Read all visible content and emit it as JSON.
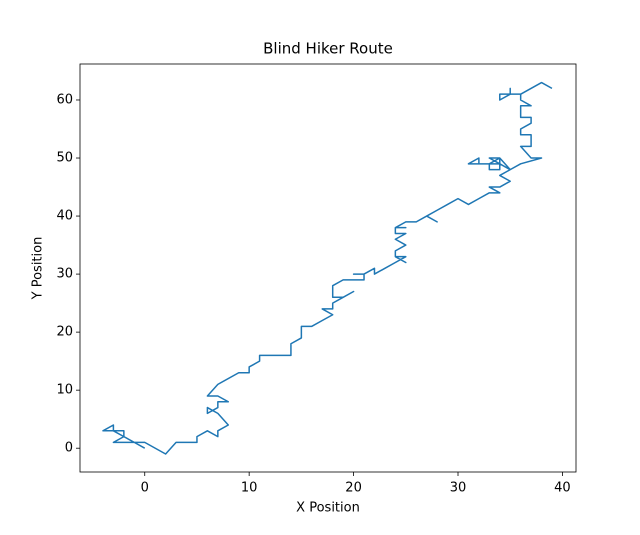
{
  "chart_data": {
    "type": "line",
    "title": "Blind Hiker Route",
    "x_label": "X Position",
    "y_label": "Y Position",
    "x": [
      0,
      -1,
      -3,
      -2,
      -3,
      -4,
      -3,
      -3,
      -2,
      -2,
      -1,
      0,
      2,
      3,
      5,
      5,
      6,
      7,
      7,
      8,
      7,
      6,
      6,
      7,
      7,
      8,
      7,
      6,
      7,
      9,
      10,
      10,
      11,
      11,
      12,
      14,
      14,
      15,
      15,
      16,
      17,
      18,
      17,
      18,
      18,
      19,
      20,
      19,
      18,
      18,
      19,
      20,
      21,
      21,
      20,
      21,
      22,
      22,
      23,
      24,
      25,
      24,
      25,
      24,
      24,
      25,
      24,
      25,
      24,
      24,
      25,
      24,
      25,
      26,
      27,
      28,
      27,
      28,
      29,
      30,
      31,
      32,
      33,
      34,
      33,
      34,
      35,
      34,
      35,
      34,
      33,
      34,
      33,
      33,
      34,
      34,
      33,
      32,
      31,
      32,
      32,
      33,
      34,
      34,
      35,
      36,
      38,
      37,
      36,
      37,
      37,
      36,
      36,
      37,
      37,
      36,
      36,
      37,
      36,
      36,
      35,
      34,
      34,
      35,
      35,
      35,
      36,
      38,
      39
    ],
    "values": [
      0,
      1,
      1,
      2,
      3,
      3,
      4,
      3,
      3,
      2,
      1,
      1,
      -1,
      1,
      1,
      2,
      3,
      2,
      3,
      4,
      6,
      7,
      6,
      7,
      8,
      8,
      9,
      9,
      11,
      13,
      13,
      14,
      15,
      16,
      16,
      16,
      18,
      19,
      21,
      21,
      22,
      23,
      24,
      24,
      25,
      26,
      27,
      26,
      26,
      28,
      29,
      29,
      29,
      30,
      30,
      30,
      31,
      30,
      31,
      32,
      33,
      33,
      32,
      33,
      34,
      35,
      36,
      37,
      37,
      38,
      38,
      38,
      39,
      39,
      40,
      39,
      40,
      41,
      42,
      43,
      42,
      43,
      44,
      44,
      45,
      45,
      46,
      47,
      48,
      49,
      50,
      50,
      49,
      48,
      48,
      49,
      49,
      49,
      49,
      50,
      49,
      49,
      49,
      50,
      48,
      49,
      50,
      50,
      52,
      52,
      54,
      54,
      55,
      56,
      57,
      57,
      59,
      59,
      60,
      61,
      61,
      60,
      61,
      61,
      62,
      61,
      61,
      63,
      62
    ],
    "color": "#1f77b4",
    "xlim": [
      -6.2,
      41.3
    ],
    "ylim": [
      -4.1,
      66.2
    ],
    "xticks": [
      0,
      10,
      20,
      30,
      40
    ],
    "yticks": [
      0,
      10,
      20,
      30,
      40,
      50,
      60
    ]
  }
}
